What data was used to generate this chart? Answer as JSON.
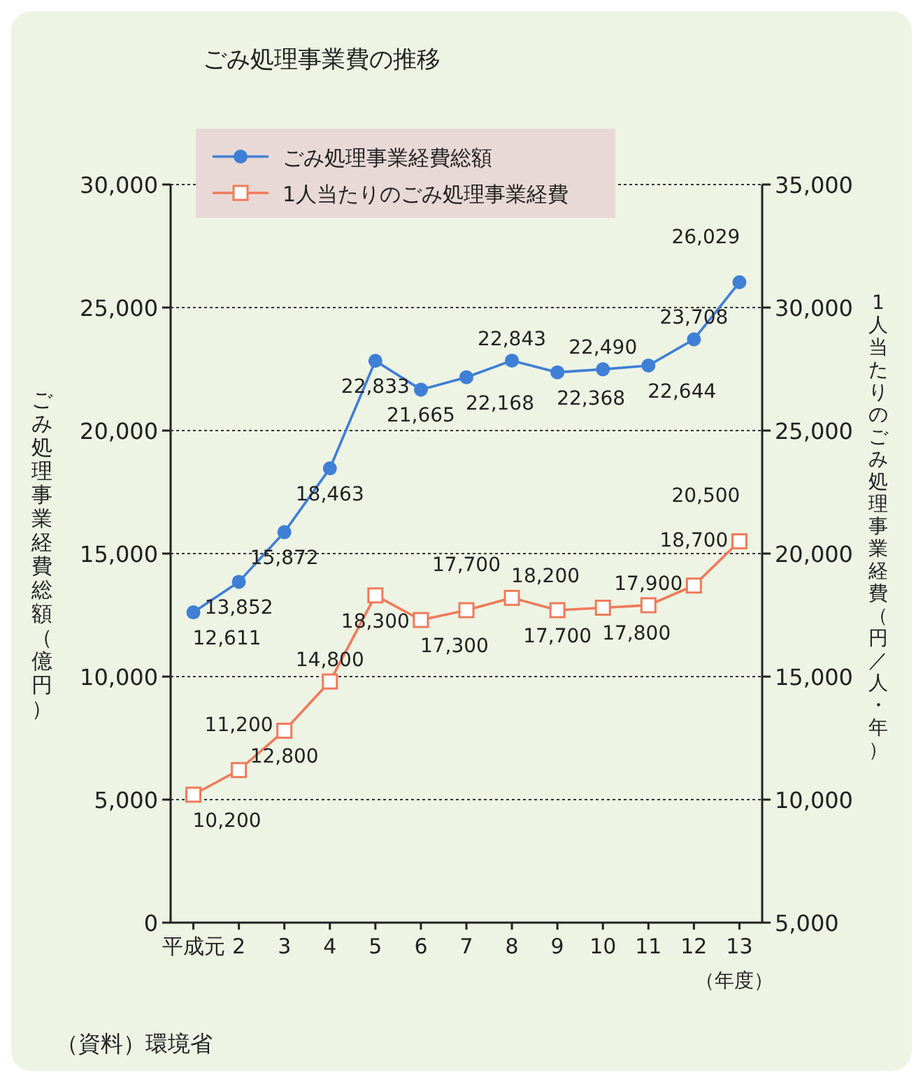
{
  "chart_data": {
    "type": "line",
    "title": "ごみ処理事業費の推移",
    "xlabel": "（年度）",
    "ylabel": "ごみ処理事業経費総額（億円）",
    "y2label": "1人当たりのごみ処理事業経費（円／人・年）",
    "categories": [
      "平成元",
      "2",
      "3",
      "4",
      "5",
      "6",
      "7",
      "8",
      "9",
      "10",
      "11",
      "12",
      "13"
    ],
    "series": [
      {
        "name": "ごみ処理事業経費総額",
        "color": "#3f7fd6",
        "marker": "circle",
        "values": [
          12611,
          13852,
          15872,
          18463,
          22833,
          21665,
          22168,
          22843,
          22368,
          22490,
          22644,
          23708,
          26029
        ],
        "value_labels": [
          "12,611",
          "13,852",
          "15,872",
          "18,463",
          "22,833",
          "21,665",
          "22,168",
          "22,843",
          "22,368",
          "22,490",
          "22,644",
          "23,708",
          "26,029"
        ]
      },
      {
        "name": "1人当たりのごみ処理事業経費",
        "color": "#f07a5a",
        "marker": "square",
        "axis": "y2",
        "values": [
          10200,
          11200,
          12800,
          14800,
          18300,
          17300,
          17700,
          18200,
          17700,
          17800,
          17900,
          18700,
          20500
        ],
        "value_labels": [
          "10,200",
          "11,200",
          "12,800",
          "14,800",
          "18,300",
          "17,300",
          "17,700",
          "18,200",
          "17,700",
          "17,800",
          "17,900",
          "18,700",
          "20,500"
        ]
      }
    ],
    "ylim": [
      0,
      30000
    ],
    "yticks": [
      0,
      {
        "value": 5000,
        "label": "5,000"
      },
      {
        "value": 10000,
        "label": "10,000"
      },
      {
        "value": 15000,
        "label": "15,000"
      },
      {
        "value": 20000,
        "label": "20,000"
      },
      {
        "value": 25000,
        "label": "25,000"
      },
      {
        "value": 30000,
        "label": "30,000"
      }
    ],
    "y2lim": [
      5000,
      35000
    ],
    "y2ticks": [
      {
        "value": 5000,
        "label": "5,000"
      },
      {
        "value": 10000,
        "label": "10,000"
      },
      {
        "value": 15000,
        "label": "15,000"
      },
      {
        "value": 20000,
        "label": "20,000"
      },
      {
        "value": 25000,
        "label": "25,000"
      },
      {
        "value": 30000,
        "label": "30,000"
      },
      {
        "value": 35000,
        "label": "35,000"
      }
    ],
    "grid": "y",
    "legend": "top left",
    "line_style": "solid",
    "annotations": [
      "（資料）環境省"
    ]
  }
}
